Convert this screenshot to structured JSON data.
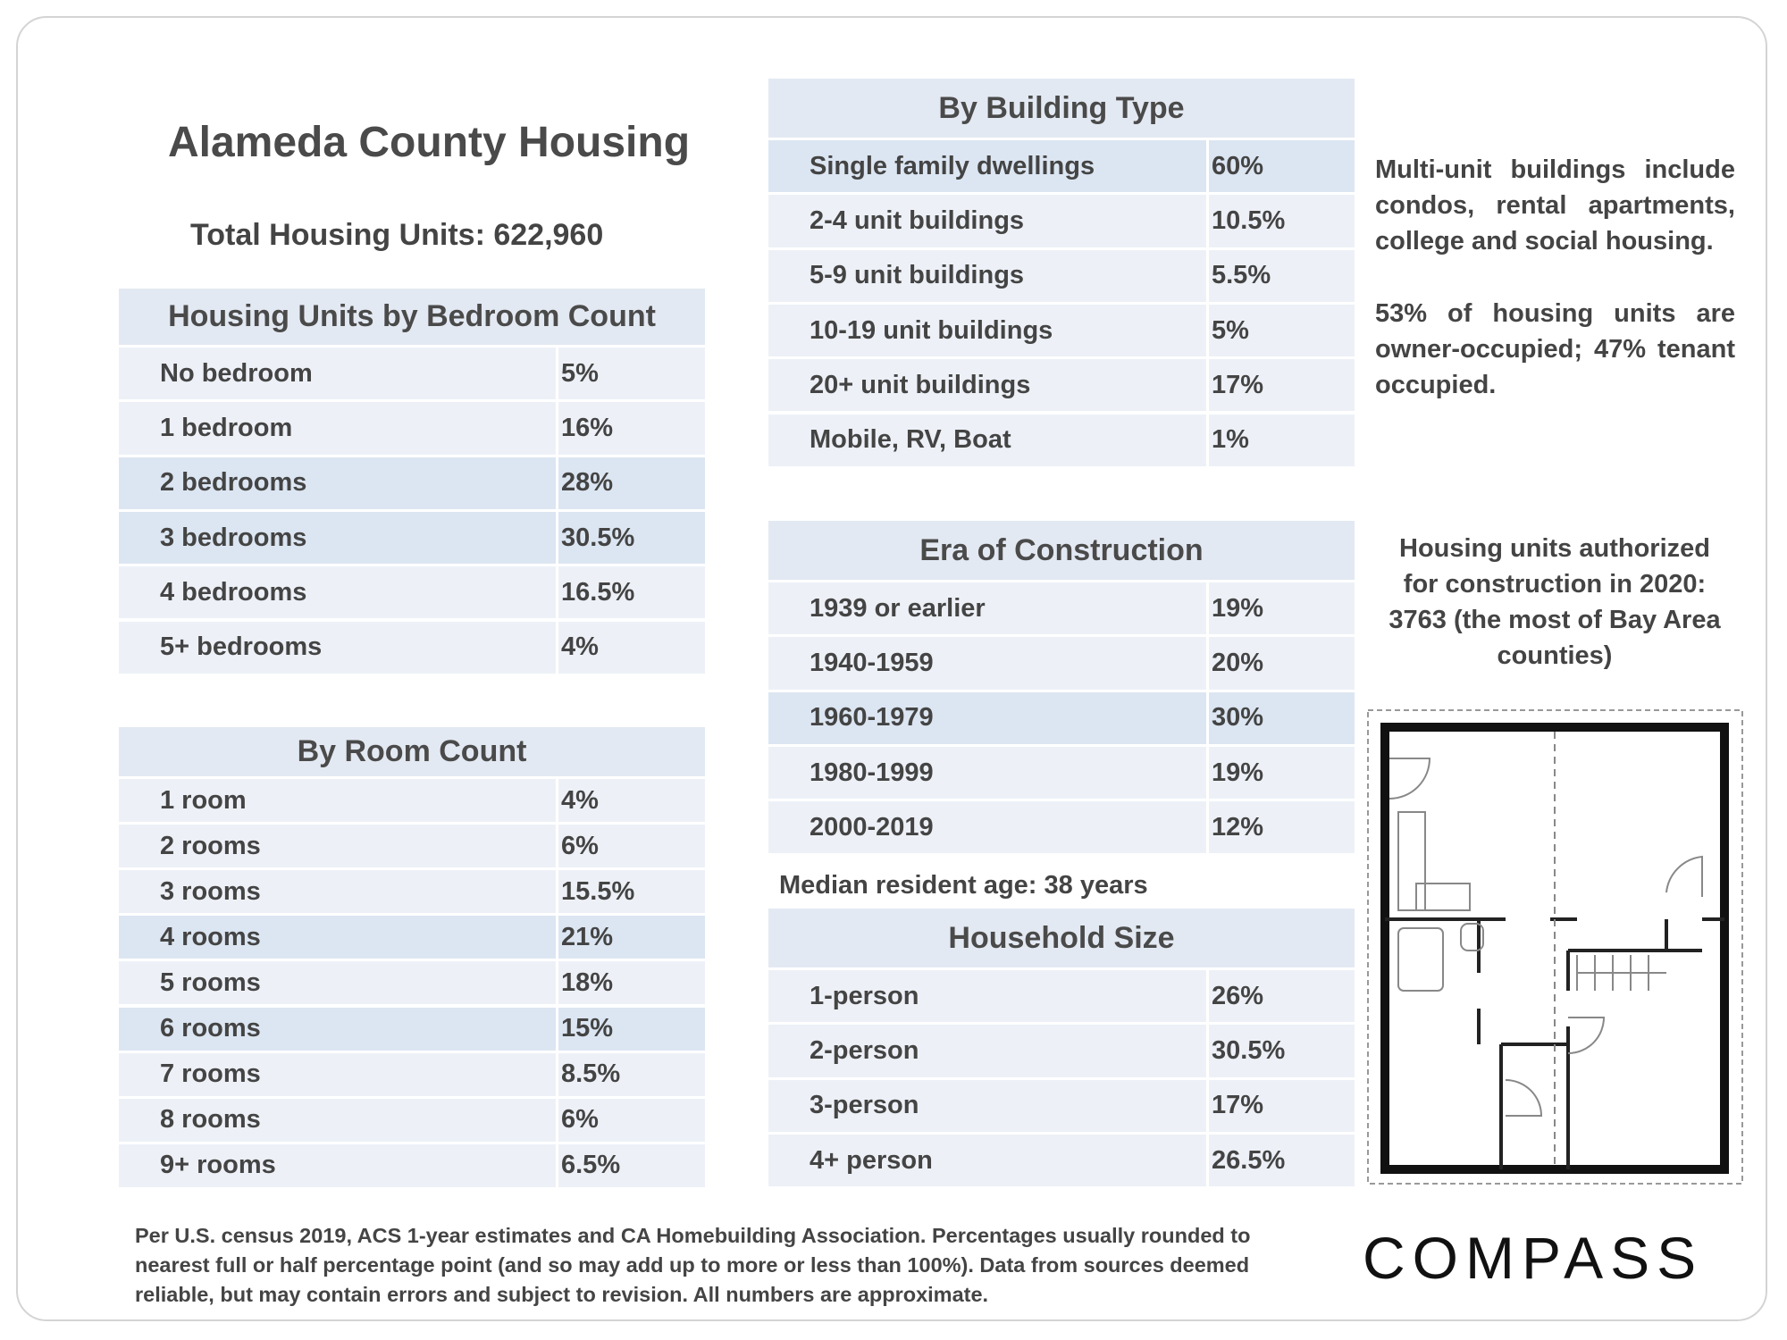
{
  "title": "Alameda County Housing",
  "total_units": "Total Housing Units: 622,960",
  "tables": [
    {
      "title": "Housing Units by Bedroom Count",
      "rows": [
        [
          "No bedroom",
          "5%"
        ],
        [
          "1 bedroom",
          "16%"
        ],
        [
          "2 bedrooms",
          "28%"
        ],
        [
          "3 bedrooms",
          "30.5%"
        ],
        [
          "4 bedrooms",
          "16.5%"
        ],
        [
          "5+ bedrooms",
          "4%"
        ]
      ]
    },
    {
      "title": "By Room Count",
      "rows": [
        [
          "1 room",
          "4%"
        ],
        [
          "2 rooms",
          "6%"
        ],
        [
          "3 rooms",
          "15.5%"
        ],
        [
          "4 rooms",
          "21%"
        ],
        [
          "5 rooms",
          "18%"
        ],
        [
          "6 rooms",
          "15%"
        ],
        [
          "7 rooms",
          "8.5%"
        ],
        [
          "8 rooms",
          "6%"
        ],
        [
          "9+ rooms",
          "6.5%"
        ]
      ]
    },
    {
      "title": "By Building Type",
      "rows": [
        [
          "Single family dwellings",
          "60%"
        ],
        [
          "2-4 unit buildings",
          "10.5%"
        ],
        [
          "5-9 unit buildings",
          "5.5%"
        ],
        [
          "10-19 unit buildings",
          "5%"
        ],
        [
          "20+ unit buildings",
          "17%"
        ],
        [
          "Mobile, RV, Boat",
          "1%"
        ]
      ]
    },
    {
      "title": "Era of Construction",
      "rows": [
        [
          "1939 or earlier",
          "19%"
        ],
        [
          "1940-1959",
          "20%"
        ],
        [
          "1960-1979",
          "30%"
        ],
        [
          "1980-1999",
          "19%"
        ],
        [
          "2000-2019",
          "12%"
        ]
      ]
    },
    {
      "title": "Household Size",
      "rows": [
        [
          "1-person",
          "26%"
        ],
        [
          "2-person",
          "30.5%"
        ],
        [
          "3-person",
          "17%"
        ],
        [
          "4+ person",
          "26.5%"
        ]
      ]
    }
  ],
  "median_age": "Median resident age: 38 years",
  "notes": [
    "Multi-unit buildings include condos, rental apartments, college and social housing.",
    "53% of housing units are owner-occupied; 47% tenant occupied."
  ],
  "authorized_note": "Housing units authorized for construction in 2020: 3763 (the most of Bay Area counties)",
  "footnote": "Per U.S. census 2019, ACS 1-year estimates and CA Homebuilding Association. Percentages usually rounded to nearest full or half percentage point (and so may add up to more or less than 100%). Data from sources deemed reliable, but may contain errors and subject to revision. All numbers are approximate.",
  "logo": "COMPASS"
}
